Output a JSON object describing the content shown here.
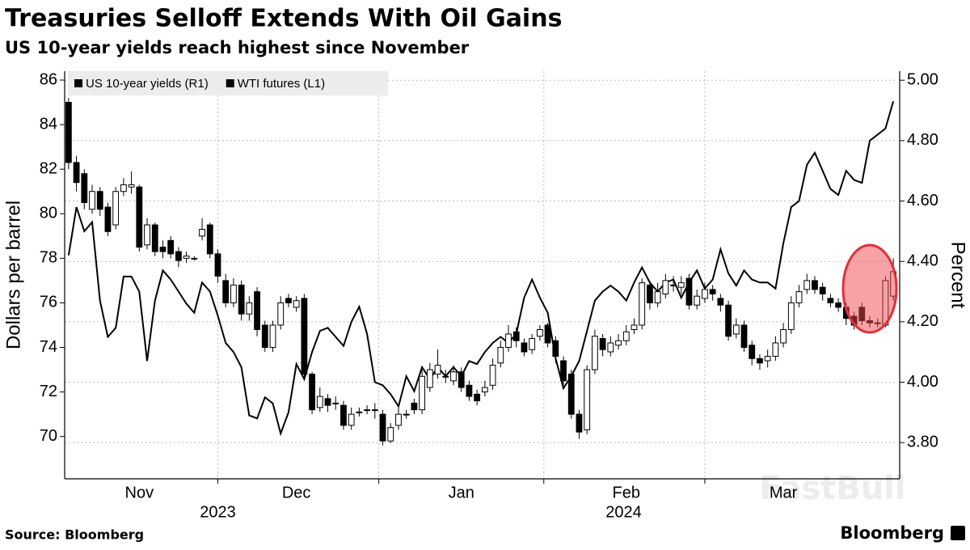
{
  "chart_data": {
    "type": "candlestick",
    "title": "Treasuries Selloff Extends With Oil Gains",
    "subtitle": "US 10-year yields reach highest since November",
    "ylabel": "Dollars per barrel",
    "y2label": "Percent",
    "source": "Source: Bloomberg",
    "logo": "Bloomberg",
    "watermark": "FastBull",
    "grid": true,
    "legend": "top-left",
    "categories": [
      null,
      null,
      null,
      null,
      null,
      null,
      null,
      null,
      null,
      "Nov",
      null,
      null,
      null,
      null,
      null,
      null,
      null,
      null,
      null,
      null,
      null,
      null,
      null,
      null,
      null,
      null,
      null,
      null,
      null,
      "Dec",
      null,
      null,
      null,
      null,
      null,
      null,
      null,
      null,
      null,
      null,
      null,
      null,
      null,
      null,
      null,
      null,
      null,
      null,
      null,
      null,
      "Jan",
      null,
      null,
      null,
      null,
      null,
      null,
      null,
      null,
      null,
      null,
      null,
      null,
      null,
      null,
      null,
      null,
      null,
      null,
      null,
      null,
      "Feb",
      null,
      null,
      null,
      null,
      null,
      null,
      null,
      null,
      null,
      null,
      null,
      null,
      null,
      null,
      null,
      null,
      null,
      null,
      null,
      "Mar",
      null,
      null,
      null,
      null,
      null,
      null,
      null,
      null,
      null,
      null,
      null,
      null,
      null,
      null
    ],
    "year_categories": [
      "2023",
      null,
      null,
      null,
      null,
      null,
      null,
      null,
      null,
      null,
      null,
      null,
      null,
      null,
      null,
      null,
      null,
      null,
      null,
      null,
      null,
      null,
      null,
      null,
      null,
      null,
      null,
      null,
      null,
      null,
      null,
      null,
      null,
      null,
      null,
      null,
      null,
      null,
      null,
      null,
      null,
      null,
      null,
      null,
      null,
      null,
      null,
      null,
      null,
      null,
      "2024",
      null,
      null,
      null,
      null,
      null,
      null,
      null,
      null,
      null,
      null,
      null,
      null,
      null,
      null,
      null,
      null,
      null,
      null,
      null,
      null,
      null,
      null,
      null,
      null,
      null,
      null,
      null,
      null,
      null,
      null,
      null,
      null,
      null,
      null,
      null,
      null,
      null,
      null,
      null,
      null,
      null,
      null,
      null,
      null,
      null,
      null,
      null,
      null,
      null,
      null,
      null,
      null,
      null,
      null,
      null
    ],
    "ylim": [
      68.1,
      86.4
    ],
    "yticks": [
      70,
      72,
      74,
      76,
      78,
      80,
      82,
      84,
      86
    ],
    "y2lim": [
      3.68,
      5.03
    ],
    "y2ticks": [
      {
        "value": 3.8,
        "label": "3.80"
      },
      {
        "value": 4.0,
        "label": "4.00"
      },
      {
        "value": 4.2,
        "label": "4.20"
      },
      {
        "value": 4.4,
        "label": "4.40"
      },
      {
        "value": 4.6,
        "label": "4.60"
      },
      {
        "value": 4.8,
        "label": "4.80"
      },
      {
        "value": 5.0,
        "label": "5.00"
      }
    ],
    "series": [
      {
        "name": "US 10-year yields (R1)",
        "type": "line",
        "axis": "y2",
        "color": "#000000",
        "values": [
          4.42,
          4.58,
          4.5,
          4.53,
          4.27,
          4.15,
          4.18,
          4.35,
          4.35,
          4.3,
          4.07,
          4.27,
          4.37,
          4.34,
          4.3,
          4.26,
          4.23,
          4.33,
          4.3,
          4.22,
          4.13,
          4.1,
          4.05,
          3.89,
          3.88,
          3.95,
          3.93,
          3.83,
          3.9,
          4.06,
          4.01,
          4.1,
          4.17,
          4.18,
          4.15,
          4.12,
          4.2,
          4.25,
          4.16,
          4.0,
          3.99,
          3.96,
          3.92,
          4.02,
          3.97,
          4.05,
          4.01,
          4.05,
          4.02,
          4.05,
          4.02,
          4.07,
          4.06,
          4.1,
          4.13,
          4.15,
          4.13,
          4.16,
          4.28,
          4.34,
          4.28,
          4.23,
          4.08,
          3.98,
          4.02,
          4.07,
          4.17,
          4.27,
          4.3,
          4.32,
          4.3,
          4.27,
          4.33,
          4.38,
          4.33,
          4.3,
          4.33,
          4.34,
          4.28,
          4.33,
          4.37,
          4.31,
          4.34,
          4.44,
          4.36,
          4.32,
          4.37,
          4.34,
          4.33,
          4.33,
          4.31,
          4.46,
          4.58,
          4.6,
          4.72,
          4.76,
          4.7,
          4.64,
          4.62,
          4.7,
          4.67,
          4.66,
          4.8,
          4.82,
          4.84,
          4.93
        ]
      },
      {
        "name": "WTI futures (L1)",
        "type": "candlestick",
        "color": "#000000",
        "up_color": "#ffffff",
        "open": [
          85,
          82.3,
          81.8,
          80.2,
          81.0,
          80.3,
          79.5,
          81.0,
          81.2,
          81.2,
          78.6,
          79.5,
          78.5,
          78.8,
          78.3,
          78.0,
          78.0,
          79.0,
          79.5,
          78.2,
          77.0,
          76.0,
          76.8,
          75.5,
          76.5,
          75.0,
          74.0,
          75.0,
          76.2,
          75.8,
          76.2,
          72.8,
          71.3,
          71.7,
          71.5,
          71.4,
          70.5,
          71.1,
          71.2,
          71.2,
          71.0,
          69.8,
          70.5,
          71.0,
          71.5,
          71.2,
          72.2,
          72.8,
          72.7,
          72.5,
          72.9,
          72.3,
          71.9,
          72.0,
          72.3,
          73.3,
          74.0,
          74.7,
          74.2,
          73.9,
          74.5,
          75.0,
          74.3,
          73.4,
          72.8,
          71.0,
          70.3,
          73.0,
          74.4,
          73.8,
          74.1,
          74.3,
          74.8,
          75.0,
          76.8,
          76.0,
          76.4,
          76.8,
          76.7,
          77.1,
          75.9,
          76.2,
          76.6,
          76.2,
          75.9,
          74.6,
          75.0,
          74.1,
          73.5,
          73.4,
          73.6,
          74.2,
          74.8,
          76.0,
          76.6,
          77.0,
          76.7,
          76.2,
          76.0,
          75.8,
          75.4,
          75.8,
          75.2,
          75.1,
          75.0,
          76.3
        ],
        "high": [
          85.2,
          82.6,
          82.0,
          81.3,
          81.2,
          80.5,
          81.2,
          81.6,
          81.9,
          81.3,
          79.8,
          79.6,
          78.8,
          79.0,
          78.5,
          78.3,
          78.1,
          79.8,
          79.6,
          78.4,
          77.3,
          77.1,
          77.0,
          76.3,
          76.7,
          75.2,
          75.2,
          76.3,
          76.4,
          76.3,
          76.4,
          72.9,
          72.2,
          71.9,
          71.8,
          71.6,
          71.3,
          71.3,
          71.4,
          71.5,
          71.2,
          70.6,
          71.3,
          71.2,
          71.7,
          73.0,
          73.3,
          73.9,
          73.0,
          73.2,
          73.1,
          72.5,
          72.1,
          72.5,
          73.5,
          74.3,
          75.0,
          74.9,
          74.4,
          74.6,
          75.0,
          75.1,
          74.5,
          73.6,
          73.0,
          71.2,
          73.2,
          74.8,
          74.6,
          74.5,
          74.6,
          75.0,
          75.3,
          77.1,
          77.0,
          76.9,
          77.3,
          77.2,
          77.2,
          77.3,
          76.6,
          76.9,
          76.8,
          76.4,
          76.1,
          75.3,
          75.2,
          74.3,
          73.7,
          73.9,
          74.5,
          75.1,
          76.3,
          76.8,
          77.3,
          77.2,
          76.9,
          76.4,
          76.2,
          76.0,
          75.6,
          76.0,
          75.4,
          75.3,
          77.2,
          78.0
        ],
        "low": [
          82.0,
          81.0,
          80.2,
          80.0,
          79.9,
          79.0,
          79.3,
          80.8,
          80.9,
          78.3,
          78.4,
          78.1,
          78.0,
          78.0,
          77.6,
          77.8,
          77.9,
          78.8,
          78.0,
          76.9,
          75.8,
          75.8,
          75.2,
          75.2,
          74.5,
          73.8,
          73.8,
          74.8,
          75.8,
          75.6,
          72.6,
          71.0,
          71.1,
          71.1,
          71.2,
          70.3,
          70.3,
          70.9,
          71.0,
          70.8,
          69.6,
          69.7,
          70.3,
          70.8,
          71.0,
          71.0,
          72.0,
          72.6,
          72.4,
          72.3,
          72.0,
          71.6,
          71.4,
          71.8,
          72.1,
          73.1,
          73.8,
          74.0,
          73.6,
          73.7,
          74.3,
          74.0,
          73.3,
          72.3,
          70.8,
          69.9,
          70.1,
          72.8,
          73.6,
          73.6,
          73.9,
          74.1,
          74.6,
          74.8,
          75.7,
          75.8,
          76.2,
          76.5,
          76.4,
          75.7,
          75.7,
          76.0,
          76.1,
          75.6,
          74.3,
          74.4,
          73.8,
          73.2,
          73.0,
          73.1,
          73.4,
          74.0,
          74.6,
          75.8,
          76.4,
          76.4,
          76.1,
          75.8,
          75.6,
          75.0,
          74.8,
          75.0,
          74.9,
          74.9,
          74.9,
          76.1
        ],
        "close": [
          82.3,
          81.4,
          80.5,
          81.0,
          80.2,
          79.2,
          81.0,
          81.3,
          81.3,
          78.5,
          79.5,
          78.3,
          78.3,
          78.2,
          77.9,
          78.1,
          78.0,
          79.3,
          78.2,
          77.2,
          76.0,
          76.8,
          75.5,
          76.0,
          74.8,
          74.0,
          75.0,
          76.0,
          76.0,
          76.1,
          72.8,
          71.2,
          71.8,
          71.4,
          71.5,
          70.5,
          71.0,
          71.1,
          71.2,
          71.2,
          69.8,
          70.4,
          71.0,
          71.0,
          71.2,
          72.7,
          73.0,
          73.2,
          72.7,
          72.9,
          72.2,
          71.8,
          71.6,
          72.2,
          73.2,
          74.0,
          74.6,
          74.3,
          73.8,
          74.4,
          74.8,
          74.2,
          73.6,
          72.5,
          71.0,
          70.2,
          73.0,
          74.5,
          73.9,
          74.2,
          74.3,
          74.7,
          75.0,
          76.9,
          76.0,
          76.5,
          77.0,
          76.8,
          76.9,
          75.9,
          76.3,
          76.6,
          76.4,
          75.9,
          74.5,
          75.0,
          74.0,
          73.5,
          73.3,
          73.6,
          74.2,
          74.8,
          76.0,
          76.5,
          77.0,
          76.6,
          76.4,
          76.0,
          75.8,
          75.3,
          75.0,
          75.2,
          75.1,
          75.1,
          77.0,
          77.4
        ]
      }
    ]
  }
}
